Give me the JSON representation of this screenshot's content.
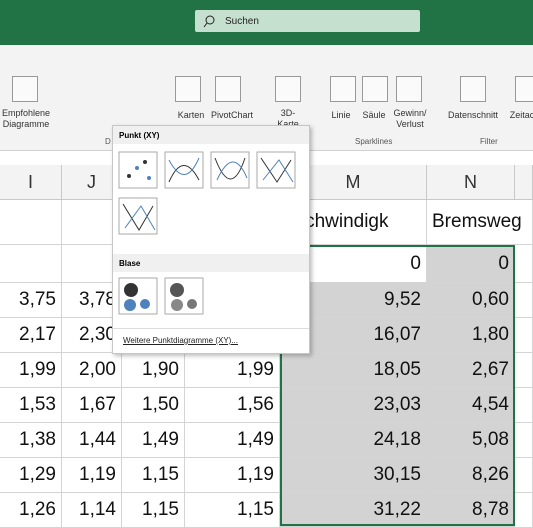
{
  "search": "Suchen",
  "ribbon": {
    "buttons": [
      {
        "lines": [
          "Empfohlene",
          "Diagramme"
        ]
      },
      {
        "lines": [
          "Karten"
        ]
      },
      {
        "lines": [
          "PivotChart"
        ]
      },
      {
        "lines": [
          "3D-",
          "Karte"
        ]
      },
      {
        "lines": [
          "Linie"
        ]
      },
      {
        "lines": [
          "Säule"
        ]
      },
      {
        "lines": [
          "Gewinn/",
          "Verlust"
        ]
      },
      {
        "lines": [
          "Datenschnitt"
        ]
      },
      {
        "lines": [
          "Zeitac"
        ]
      }
    ],
    "groups": [
      "D",
      "Sparklines",
      "Filter"
    ]
  },
  "dropdown": {
    "sections": [
      "Punkt (XY)",
      "Blase"
    ],
    "more": "Weitere Punktdiagramme (XY)..."
  },
  "columns": [
    "I",
    "J",
    "M",
    "N"
  ],
  "table": {
    "rows": [
      [
        null,
        null,
        null,
        null,
        "eschwindigk",
        "Bremsweg"
      ],
      [
        null,
        null,
        null,
        null,
        "0",
        "0"
      ],
      [
        "3,75",
        "3,78",
        null,
        null,
        "9,52",
        "0,60"
      ],
      [
        "2,17",
        "2,30",
        null,
        null,
        "16,07",
        "1,80"
      ],
      [
        "1,99",
        "2,00",
        "1,90",
        "1,99",
        "18,05",
        "2,67"
      ],
      [
        "1,53",
        "1,67",
        "1,50",
        "1,56",
        "23,03",
        "4,54"
      ],
      [
        "1,38",
        "1,44",
        "1,49",
        "1,49",
        "24,18",
        "5,08"
      ],
      [
        "1,29",
        "1,19",
        "1,15",
        "1,19",
        "30,15",
        "8,26"
      ],
      [
        "1,26",
        "1,14",
        "1,15",
        "1,15",
        "31,22",
        "8,78"
      ]
    ]
  }
}
